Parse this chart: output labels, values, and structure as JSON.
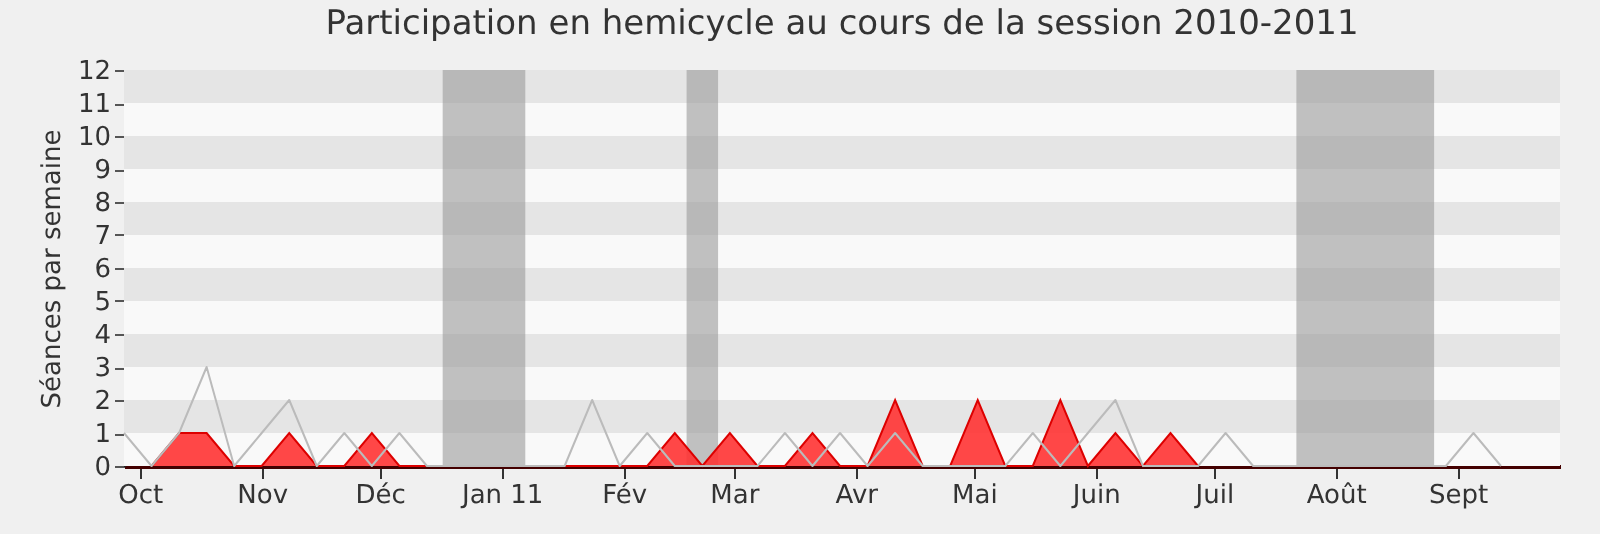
{
  "chart_data": {
    "type": "line",
    "title": "Participation en hemicycle au cours de la session 2010-2011",
    "ylabel": "Séances par semaine",
    "x": [
      "2010-09-27",
      "2010-10-04",
      "2010-10-11",
      "2010-10-18",
      "2010-10-25",
      "2010-11-01",
      "2010-11-08",
      "2010-11-15",
      "2010-11-22",
      "2010-11-29",
      "2010-12-06",
      "2010-12-13",
      "2010-12-20",
      "2010-12-27",
      "2011-01-03",
      "2011-01-10",
      "2011-01-17",
      "2011-01-24",
      "2011-01-31",
      "2011-02-07",
      "2011-02-14",
      "2011-02-21",
      "2011-02-28",
      "2011-03-07",
      "2011-03-14",
      "2011-03-21",
      "2011-03-28",
      "2011-04-04",
      "2011-04-11",
      "2011-04-18",
      "2011-04-25",
      "2011-05-02",
      "2011-05-09",
      "2011-05-16",
      "2011-05-23",
      "2011-05-30",
      "2011-06-06",
      "2011-06-13",
      "2011-06-20",
      "2011-06-27",
      "2011-07-04",
      "2011-07-11",
      "2011-07-18",
      "2011-07-25",
      "2011-08-01",
      "2011-08-08",
      "2011-08-15",
      "2011-08-22",
      "2011-08-29",
      "2011-09-05",
      "2011-09-12"
    ],
    "series": [
      {
        "type": "area",
        "color": "#ff3333",
        "values": [
          null,
          0,
          1,
          1,
          0,
          0,
          1,
          0,
          0,
          1,
          0,
          0,
          0,
          0,
          0,
          0,
          0,
          0,
          0,
          0,
          1,
          0,
          1,
          0,
          0,
          1,
          0,
          0,
          2,
          0,
          0,
          2,
          0,
          0,
          2,
          0,
          1,
          0,
          1,
          0,
          null,
          null,
          null,
          null,
          null,
          null,
          null,
          null,
          null,
          null,
          null
        ]
      },
      {
        "color": "#bbbbbb",
        "values": [
          1,
          0,
          1,
          3,
          0,
          1,
          2,
          0,
          1,
          0,
          1,
          0,
          0,
          0,
          0,
          0,
          0,
          2,
          0,
          1,
          0,
          0,
          0,
          0,
          1,
          0,
          1,
          0,
          1,
          0,
          0,
          0,
          0,
          1,
          0,
          1,
          2,
          0,
          0,
          0,
          1,
          0,
          0,
          0,
          0,
          0,
          0,
          0,
          0,
          1,
          0
        ]
      }
    ],
    "xlim": [
      "2010-09-27",
      "2011-09-27"
    ],
    "xticks": [
      {
        "value": "2010-10-01",
        "label": "Oct"
      },
      {
        "value": "2010-11-01",
        "label": "Nov"
      },
      {
        "value": "2010-12-01",
        "label": "Déc"
      },
      {
        "value": "2011-01-01",
        "label": "Jan 11"
      },
      {
        "value": "2011-02-01",
        "label": "Fév"
      },
      {
        "value": "2011-03-01",
        "label": "Mar"
      },
      {
        "value": "2011-04-01",
        "label": "Avr"
      },
      {
        "value": "2011-05-01",
        "label": "Mai"
      },
      {
        "value": "2011-06-01",
        "label": "Juin"
      },
      {
        "value": "2011-07-01",
        "label": "Juil"
      },
      {
        "value": "2011-08-01",
        "label": "Août"
      },
      {
        "value": "2011-09-01",
        "label": "Sept"
      }
    ],
    "ylim": [
      0,
      12
    ],
    "yticks": [
      0,
      1,
      2,
      3,
      4,
      5,
      6,
      7,
      8,
      9,
      10,
      11,
      12
    ],
    "bands": [
      {
        "axis": "x",
        "from": "2010-12-17",
        "to": "2011-01-07",
        "color": "#999999"
      },
      {
        "axis": "x",
        "from": "2011-02-17",
        "to": "2011-02-25",
        "color": "#999999"
      },
      {
        "axis": "x",
        "from": "2011-07-22",
        "to": "2011-08-26",
        "color": "#999999"
      }
    ]
  }
}
